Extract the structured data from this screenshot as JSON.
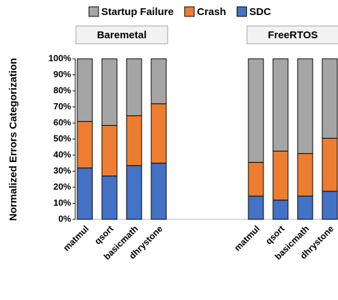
{
  "chart_data": {
    "type": "bar",
    "stacked": true,
    "y_label": "Normalized Errors Categorization",
    "groups": [
      "Baremetal",
      "FreeRTOS"
    ],
    "categories": [
      "matmul",
      "qsort",
      "basicmath",
      "dhrystone",
      "matmul",
      "qsort",
      "basicmath",
      "dhrystone"
    ],
    "series": [
      {
        "name": "SDC",
        "color": "#4472c4",
        "values": [
          32,
          27,
          33.5,
          35,
          14.5,
          12,
          14.5,
          17.5
        ]
      },
      {
        "name": "Crash",
        "color": "#ed7d31",
        "values": [
          29,
          31.5,
          31,
          37,
          21,
          30.5,
          26.5,
          33
        ]
      },
      {
        "name": "Startup Failure",
        "color": "#a5a5a5",
        "values": [
          39,
          41.5,
          35.5,
          28,
          64.5,
          57.5,
          59,
          49.5
        ]
      }
    ],
    "ylim": [
      0,
      100
    ],
    "yticks": [
      {
        "value": 0,
        "label": "0%"
      },
      {
        "value": 10,
        "label": "10%"
      },
      {
        "value": 20,
        "label": "20%"
      },
      {
        "value": 30,
        "label": "30%"
      },
      {
        "value": 40,
        "label": "40%"
      },
      {
        "value": 50,
        "label": "50%"
      },
      {
        "value": 60,
        "label": "60%"
      },
      {
        "value": 70,
        "label": "70%"
      },
      {
        "value": 80,
        "label": "80%"
      },
      {
        "value": 90,
        "label": "90%"
      },
      {
        "value": 100,
        "label": "100%"
      }
    ],
    "legend": "top"
  }
}
